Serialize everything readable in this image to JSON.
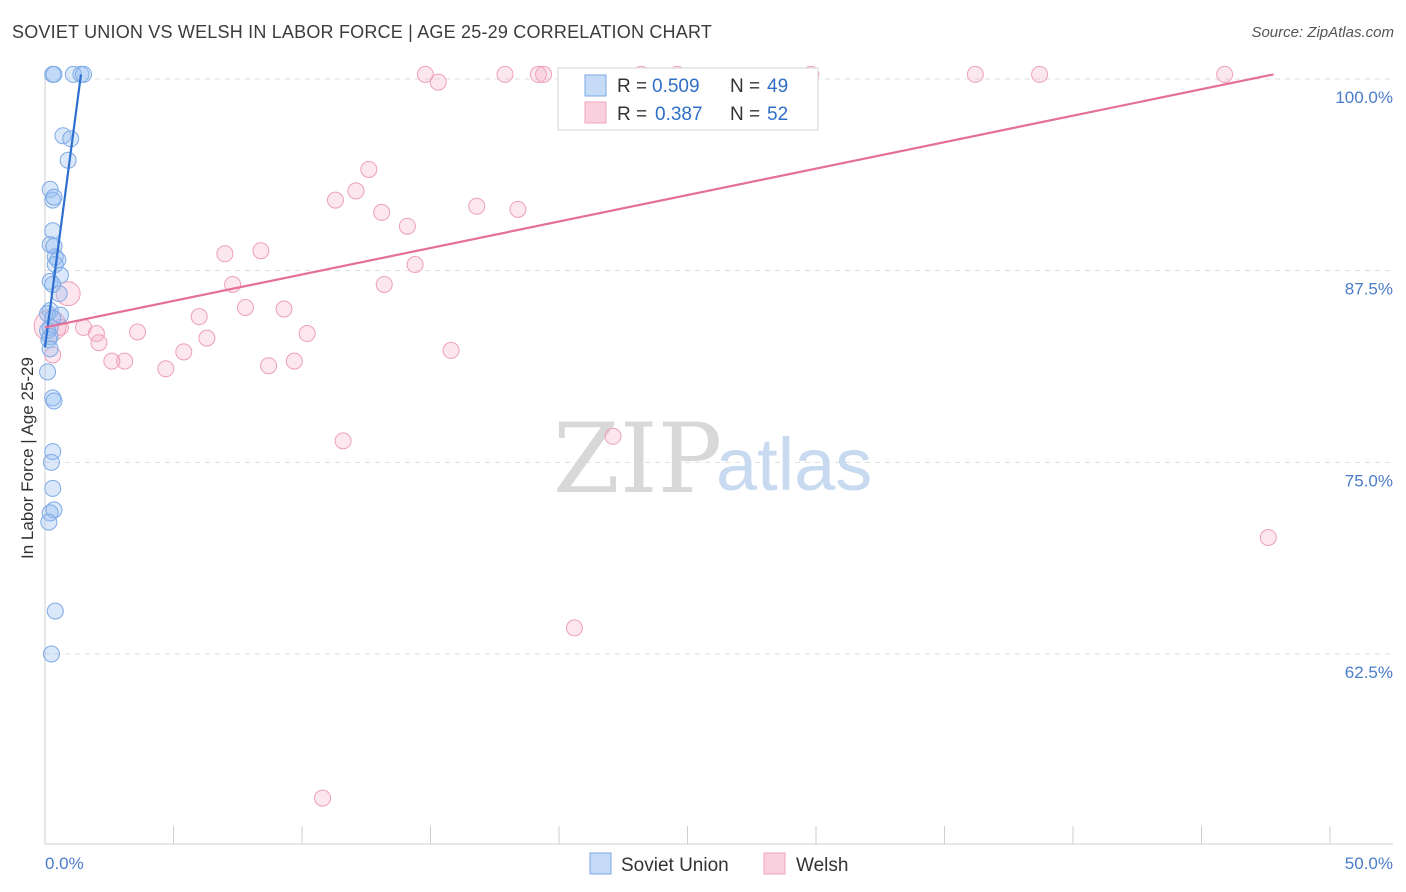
{
  "title": "SOVIET UNION VS WELSH IN LABOR FORCE | AGE 25-29 CORRELATION CHART",
  "source": "Source: ZipAtlas.com",
  "watermark": {
    "part1": "ZIP",
    "part2": "atlas"
  },
  "legend": {
    "r_label": "R =",
    "n_label": "N =",
    "rows": [
      {
        "r": "0.509",
        "n": "49"
      },
      {
        "r": "0.387",
        "n": "52"
      }
    ]
  },
  "chart_data": {
    "type": "scatter",
    "title": "SOVIET UNION VS WELSH IN LABOR FORCE | AGE 25-29 CORRELATION CHART",
    "xlabel": "",
    "ylabel": "In Labor Force | Age 25-29",
    "xlim": [
      0,
      50
    ],
    "ylim": [
      52,
      102
    ],
    "x_tick_labels": [
      "0.0%",
      "50.0%"
    ],
    "y_ticks": [
      62.5,
      75.0,
      87.5,
      100.0
    ],
    "y_tick_labels": [
      "62.5%",
      "75.0%",
      "87.5%",
      "100.0%"
    ],
    "grid": true,
    "legend_position": "top-center",
    "series": [
      {
        "name": "Soviet Union",
        "color": "#6fa3e8",
        "line_color": "#2f6fcf",
        "trendline": {
          "x": [
            0.0,
            1.4
          ],
          "y": [
            82.5,
            100.3
          ]
        },
        "points": [
          {
            "x": 0.3,
            "y": 100.3
          },
          {
            "x": 0.35,
            "y": 100.3
          },
          {
            "x": 1.1,
            "y": 100.3
          },
          {
            "x": 1.4,
            "y": 100.3
          },
          {
            "x": 1.5,
            "y": 100.3
          },
          {
            "x": 0.7,
            "y": 96.3
          },
          {
            "x": 1.0,
            "y": 96.1
          },
          {
            "x": 0.9,
            "y": 94.7
          },
          {
            "x": 0.2,
            "y": 92.8
          },
          {
            "x": 0.3,
            "y": 92.1
          },
          {
            "x": 0.35,
            "y": 92.3
          },
          {
            "x": 0.3,
            "y": 90.1
          },
          {
            "x": 0.2,
            "y": 89.2
          },
          {
            "x": 0.35,
            "y": 89.1
          },
          {
            "x": 0.4,
            "y": 88.4
          },
          {
            "x": 0.5,
            "y": 88.2
          },
          {
            "x": 0.4,
            "y": 87.9
          },
          {
            "x": 0.6,
            "y": 87.2
          },
          {
            "x": 0.2,
            "y": 86.8
          },
          {
            "x": 0.3,
            "y": 86.6
          },
          {
            "x": 0.55,
            "y": 86.0
          },
          {
            "x": 0.2,
            "y": 84.9
          },
          {
            "x": 0.1,
            "y": 84.7
          },
          {
            "x": 0.6,
            "y": 84.6
          },
          {
            "x": 0.3,
            "y": 84.4
          },
          {
            "x": 0.2,
            "y": 83.8
          },
          {
            "x": 0.1,
            "y": 83.6
          },
          {
            "x": 0.2,
            "y": 83.2
          },
          {
            "x": 0.15,
            "y": 83.0
          },
          {
            "x": 0.2,
            "y": 82.4
          },
          {
            "x": 0.1,
            "y": 80.9
          },
          {
            "x": 0.3,
            "y": 79.2
          },
          {
            "x": 0.35,
            "y": 79.0
          },
          {
            "x": 0.3,
            "y": 75.7
          },
          {
            "x": 0.25,
            "y": 75.0
          },
          {
            "x": 0.3,
            "y": 73.3
          },
          {
            "x": 0.35,
            "y": 71.9
          },
          {
            "x": 0.2,
            "y": 71.7
          },
          {
            "x": 0.15,
            "y": 71.1
          },
          {
            "x": 0.4,
            "y": 65.3
          },
          {
            "x": 0.25,
            "y": 62.5
          }
        ]
      },
      {
        "name": "Welsh",
        "color": "#f4a9c0",
        "line_color": "#e4709a",
        "trendline": {
          "x": [
            0.0,
            47.8
          ],
          "y": [
            83.8,
            100.3
          ]
        },
        "points": [
          {
            "x": 14.8,
            "y": 100.3
          },
          {
            "x": 15.3,
            "y": 99.8
          },
          {
            "x": 17.9,
            "y": 100.3
          },
          {
            "x": 19.2,
            "y": 100.3
          },
          {
            "x": 19.4,
            "y": 100.3
          },
          {
            "x": 23.2,
            "y": 100.3
          },
          {
            "x": 24.6,
            "y": 100.3
          },
          {
            "x": 29.8,
            "y": 100.3
          },
          {
            "x": 36.2,
            "y": 100.3
          },
          {
            "x": 38.7,
            "y": 100.3
          },
          {
            "x": 45.9,
            "y": 100.3
          },
          {
            "x": 12.6,
            "y": 94.1
          },
          {
            "x": 12.1,
            "y": 92.7
          },
          {
            "x": 11.3,
            "y": 92.1
          },
          {
            "x": 13.1,
            "y": 91.3
          },
          {
            "x": 14.1,
            "y": 90.4
          },
          {
            "x": 16.8,
            "y": 91.7
          },
          {
            "x": 18.4,
            "y": 91.5
          },
          {
            "x": 7.0,
            "y": 88.6
          },
          {
            "x": 8.4,
            "y": 88.8
          },
          {
            "x": 7.3,
            "y": 86.6
          },
          {
            "x": 14.4,
            "y": 87.9
          },
          {
            "x": 13.2,
            "y": 86.6
          },
          {
            "x": 7.8,
            "y": 85.1
          },
          {
            "x": 9.3,
            "y": 85.0
          },
          {
            "x": 6.0,
            "y": 84.5
          },
          {
            "x": 0.6,
            "y": 83.8
          },
          {
            "x": 1.5,
            "y": 83.8
          },
          {
            "x": 2.0,
            "y": 83.4
          },
          {
            "x": 3.6,
            "y": 83.5
          },
          {
            "x": 2.1,
            "y": 82.8
          },
          {
            "x": 6.3,
            "y": 83.1
          },
          {
            "x": 10.2,
            "y": 83.4
          },
          {
            "x": 5.4,
            "y": 82.2
          },
          {
            "x": 4.7,
            "y": 81.1
          },
          {
            "x": 3.1,
            "y": 81.6
          },
          {
            "x": 2.6,
            "y": 81.6
          },
          {
            "x": 8.7,
            "y": 81.3
          },
          {
            "x": 9.7,
            "y": 81.6
          },
          {
            "x": 15.8,
            "y": 82.3
          },
          {
            "x": 0.3,
            "y": 82.0
          },
          {
            "x": 11.6,
            "y": 76.4
          },
          {
            "x": 22.1,
            "y": 76.7
          },
          {
            "x": 47.6,
            "y": 70.1
          },
          {
            "x": 20.6,
            "y": 64.2
          },
          {
            "x": 10.8,
            "y": 53.1
          }
        ]
      }
    ]
  }
}
